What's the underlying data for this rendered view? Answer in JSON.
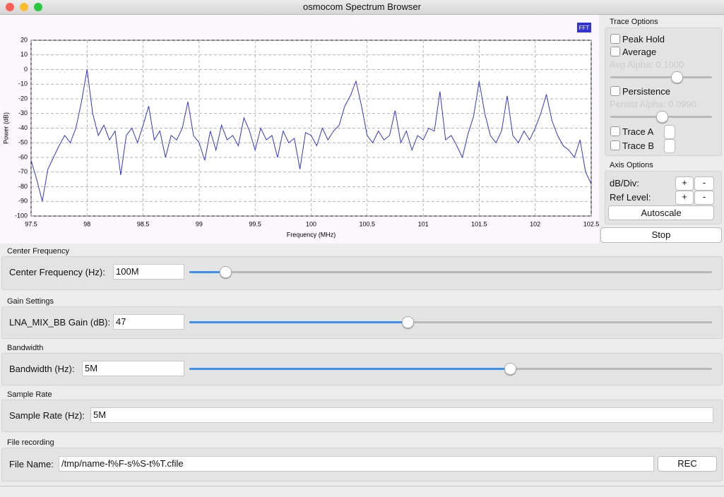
{
  "window": {
    "title": "osmocom Spectrum Browser"
  },
  "chart_data": {
    "type": "line",
    "x_label": "Frequency (MHz)",
    "y_label": "Power (dB)",
    "x": [
      97.5,
      97.55,
      97.6,
      97.65,
      97.7,
      97.75,
      97.8,
      97.85,
      97.9,
      97.95,
      98,
      98.05,
      98.1,
      98.15,
      98.2,
      98.25,
      98.3,
      98.35,
      98.4,
      98.45,
      98.5,
      98.55,
      98.6,
      98.65,
      98.7,
      98.75,
      98.8,
      98.85,
      98.9,
      98.95,
      99,
      99.05,
      99.1,
      99.15,
      99.2,
      99.25,
      99.3,
      99.35,
      99.4,
      99.45,
      99.5,
      99.55,
      99.6,
      99.65,
      99.7,
      99.75,
      99.8,
      99.85,
      99.9,
      99.95,
      100,
      100.05,
      100.1,
      100.15,
      100.2,
      100.25,
      100.3,
      100.35,
      100.4,
      100.45,
      100.5,
      100.55,
      100.6,
      100.65,
      100.7,
      100.75,
      100.8,
      100.85,
      100.9,
      100.95,
      101,
      101.05,
      101.1,
      101.15,
      101.2,
      101.25,
      101.3,
      101.35,
      101.4,
      101.45,
      101.5,
      101.55,
      101.6,
      101.65,
      101.7,
      101.75,
      101.8,
      101.85,
      101.9,
      101.95,
      102,
      102.05,
      102.1,
      102.15,
      102.2,
      102.25,
      102.3,
      102.35,
      102.4,
      102.45,
      102.5
    ],
    "series": [
      {
        "name": "FFT",
        "color": "#3434d4",
        "values": [
          -62,
          -75,
          -90,
          -68,
          -60,
          -52,
          -45,
          -50,
          -40,
          -22,
          0,
          -30,
          -45,
          -38,
          -48,
          -42,
          -72,
          -45,
          -40,
          -50,
          -38,
          -25,
          -48,
          -42,
          -60,
          -45,
          -48,
          -40,
          -22,
          -45,
          -50,
          -62,
          -42,
          -55,
          -38,
          -48,
          -45,
          -52,
          -33,
          -42,
          -55,
          -40,
          -48,
          -45,
          -60,
          -42,
          -50,
          -47,
          -68,
          -43,
          -45,
          -52,
          -40,
          -48,
          -42,
          -38,
          -25,
          -18,
          -8,
          -25,
          -45,
          -50,
          -42,
          -48,
          -45,
          -28,
          -50,
          -42,
          -55,
          -45,
          -48,
          -40,
          -42,
          -15,
          -48,
          -45,
          -52,
          -60,
          -44,
          -32,
          -8,
          -30,
          -45,
          -50,
          -42,
          -18,
          -45,
          -50,
          -42,
          -48,
          -40,
          -30,
          -17,
          -35,
          -45,
          -52,
          -55,
          -60,
          -48,
          -70,
          -78
        ]
      }
    ],
    "xlim": [
      97.5,
      102.5
    ],
    "ylim": [
      -100,
      20
    ],
    "xticks": [
      97.5,
      98,
      98.5,
      99,
      99.5,
      100,
      100.5,
      101,
      101.5,
      102,
      102.5
    ],
    "yticks": [
      20,
      10,
      0,
      -10,
      -20,
      -30,
      -40,
      -50,
      -60,
      -70,
      -80,
      -90,
      -100
    ],
    "grid": true,
    "legend": "upper right"
  },
  "trace_options": {
    "title": "Trace Options",
    "peak_hold": "Peak Hold",
    "average": "Average",
    "avg_alpha_label": "Avg Alpha:",
    "avg_alpha_value": "0.1000",
    "persistence": "Persistence",
    "persist_alpha_label": "Persist Alpha:",
    "persist_alpha_value": "0.0990",
    "trace_a": "Trace A",
    "trace_b": "Trace B"
  },
  "axis_options": {
    "title": "Axis Options",
    "db_div": "dB/Div:",
    "ref_level": "Ref Level:",
    "plus": "+",
    "minus": "-",
    "autoscale": "Autoscale"
  },
  "stop": "Stop",
  "sections": [
    {
      "title": "Center Frequency",
      "label": "Center Frequency (Hz):",
      "value": "100M"
    },
    {
      "title": "Gain Settings",
      "label": "LNA_MIX_BB Gain (dB):",
      "value": "47"
    },
    {
      "title": "Bandwidth",
      "label": "Bandwidth (Hz):",
      "value": "5M"
    },
    {
      "title": "Sample Rate",
      "label": "Sample Rate (Hz):",
      "value": "5M"
    }
  ],
  "file": {
    "title": "File recording",
    "label": "File Name:",
    "value": "/tmp/name-f%F-s%S-t%T.cfile",
    "button": "REC"
  }
}
